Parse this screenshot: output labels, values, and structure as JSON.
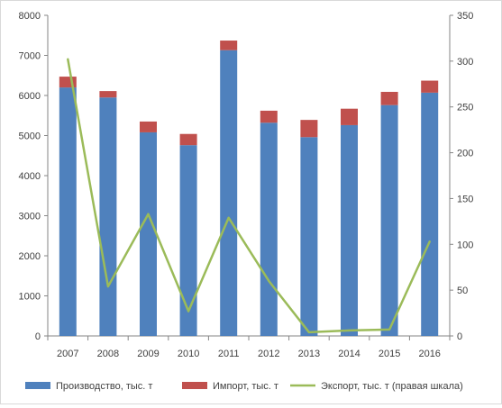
{
  "chart_data": {
    "type": "bar",
    "stacked": true,
    "categories": [
      "2007",
      "2008",
      "2009",
      "2010",
      "2011",
      "2012",
      "2013",
      "2014",
      "2015",
      "2016"
    ],
    "series": [
      {
        "name": "Производство, тыс. т",
        "kind": "bar",
        "axis": "left",
        "color": "#4f81bd",
        "values": [
          6200,
          5950,
          5080,
          4760,
          7130,
          5320,
          4960,
          5260,
          5760,
          6070
        ]
      },
      {
        "name": "Импорт, тыс. т",
        "kind": "bar",
        "axis": "left",
        "color": "#c0504d",
        "values": [
          270,
          160,
          270,
          280,
          240,
          300,
          430,
          410,
          330,
          300
        ]
      },
      {
        "name": "Экспорт, тыс. т (правая шкала)",
        "kind": "line",
        "axis": "right",
        "color": "#9bbb59",
        "values": [
          302,
          54,
          133,
          27,
          129,
          60,
          4,
          6,
          7,
          103
        ]
      }
    ],
    "y_left": {
      "min": 0,
      "max": 8000,
      "step": 1000,
      "ticks": [
        "0",
        "1000",
        "2000",
        "3000",
        "4000",
        "5000",
        "6000",
        "7000",
        "8000"
      ]
    },
    "y_right": {
      "min": 0,
      "max": 350,
      "step": 50,
      "ticks": [
        "0",
        "50",
        "100",
        "150",
        "200",
        "250",
        "300",
        "350"
      ]
    },
    "grid": false,
    "legend": "bottom"
  }
}
